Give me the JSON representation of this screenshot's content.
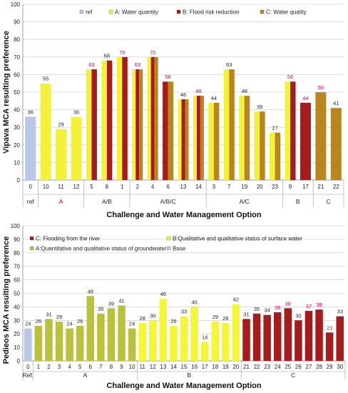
{
  "chart_data": [
    {
      "type": "bar",
      "ylabel": "Vipava MCA resulting preference",
      "xlabel": "Challenge and Water Management Option",
      "ylim": [
        0,
        100
      ],
      "yticks": [
        0,
        10,
        20,
        30,
        40,
        50,
        60,
        70,
        80,
        90,
        100
      ],
      "grid": true,
      "legend": "top",
      "series": [
        {
          "name": "ref",
          "color": "#b9c8e6"
        },
        {
          "name": "A: Water quantity",
          "color": "#f2f23a"
        },
        {
          "name": "B: Flood risk reduction",
          "color": "#a61c1c"
        },
        {
          "name": "C: Water quality",
          "color": "#b8861e"
        }
      ],
      "bars": [
        {
          "label": "0",
          "group": "ref",
          "series": [
            "ref"
          ],
          "value": 36,
          "label_color": "dark"
        },
        {
          "label": "10",
          "group": "A",
          "series": [
            "A: Water quantity"
          ],
          "value": 55,
          "label_color": "dark"
        },
        {
          "label": "11",
          "group": "A",
          "series": [
            "A: Water quantity"
          ],
          "value": 29,
          "label_color": "dark"
        },
        {
          "label": "12",
          "group": "A",
          "series": [
            "A: Water quantity"
          ],
          "value": 36,
          "label_color": "dark"
        },
        {
          "label": "5",
          "group": "A/B",
          "series": [
            "A: Water quantity",
            "B: Flood risk reduction"
          ],
          "value": 63,
          "label_color": "magenta"
        },
        {
          "label": "8",
          "group": "A/B",
          "series": [
            "A: Water quantity",
            "B: Flood risk reduction"
          ],
          "value": 68,
          "label_color": "dark"
        },
        {
          "label": "1",
          "group": "A/B",
          "series": [
            "A: Water quantity",
            "B: Flood risk reduction"
          ],
          "value": 70,
          "label_color": "magenta"
        },
        {
          "label": "2",
          "group": "A/B/C",
          "series": [
            "A: Water quantity",
            "B: Flood risk reduction",
            "C: Water quality"
          ],
          "value": 63,
          "label_color": "magenta"
        },
        {
          "label": "4",
          "group": "A/B/C",
          "series": [
            "A: Water quantity",
            "B: Flood risk reduction",
            "C: Water quality"
          ],
          "value": 70,
          "label_color": "magenta"
        },
        {
          "label": "6",
          "group": "A/B/C",
          "series": [
            "B: Flood risk reduction",
            "C: Water quality"
          ],
          "value": 56,
          "label_color": "magenta"
        },
        {
          "label": "13",
          "group": "A/B/C",
          "series": [
            "A: Water quantity",
            "B: Flood risk reduction",
            "C: Water quality"
          ],
          "value": 46,
          "label_color": "dark"
        },
        {
          "label": "14",
          "group": "A/B/C",
          "series": [
            "A: Water quantity",
            "B: Flood risk reduction",
            "C: Water quality"
          ],
          "value": 48,
          "label_color": "magenta"
        },
        {
          "label": "3",
          "group": "A/C",
          "series": [
            "A: Water quantity",
            "C: Water quality"
          ],
          "value": 44,
          "label_color": "dark"
        },
        {
          "label": "7",
          "group": "A/C",
          "series": [
            "A: Water quantity",
            "C: Water quality"
          ],
          "value": 63,
          "label_color": "dark"
        },
        {
          "label": "19",
          "group": "A/C",
          "series": [
            "A: Water quantity",
            "C: Water quality"
          ],
          "value": 48,
          "label_color": "dark"
        },
        {
          "label": "20",
          "group": "A/C",
          "series": [
            "A: Water quantity",
            "C: Water quality"
          ],
          "value": 39,
          "label_color": "dark"
        },
        {
          "label": "23",
          "group": "A/C",
          "series": [
            "A: Water quantity",
            "C: Water quality"
          ],
          "value": 27,
          "label_color": "dark"
        },
        {
          "label": "9",
          "group": "B",
          "series": [
            "A: Water quantity",
            "B: Flood risk reduction"
          ],
          "value": 56,
          "label_color": "magenta"
        },
        {
          "label": "17",
          "group": "B",
          "series": [
            "B: Flood risk reduction"
          ],
          "value": 44,
          "label_color": "magenta"
        },
        {
          "label": "21",
          "group": "C",
          "series": [
            "C: Water quality"
          ],
          "value": 50,
          "label_color": "magenta"
        },
        {
          "label": "22",
          "group": "C",
          "series": [
            "C: Water quality"
          ],
          "value": 41,
          "label_color": "dark"
        }
      ],
      "groups": [
        {
          "label": "ref",
          "color": "dark"
        },
        {
          "label": "A",
          "color": "red"
        },
        {
          "label": "A/B",
          "color": "dark"
        },
        {
          "label": "A/B/C",
          "color": "dark"
        },
        {
          "label": "A/C",
          "color": "dark"
        },
        {
          "label": "B",
          "color": "dark"
        },
        {
          "label": "C",
          "color": "dark"
        }
      ]
    },
    {
      "type": "bar",
      "ylabel": "Pedieos MCA resulting preference",
      "xlabel": "Challenge and Water Management Option",
      "ylim": [
        0,
        100
      ],
      "yticks": [
        0,
        10,
        20,
        30,
        40,
        50,
        60,
        70,
        80,
        90,
        100
      ],
      "grid": true,
      "legend": "top",
      "series": [
        {
          "name": "C: Flooding from the river",
          "color": "#a61c1c"
        },
        {
          "name": "B:Qualitative and qualitative status of surface water",
          "color": "#f5f53a"
        },
        {
          "name": "A:Quantitative and qualitative status of groundwater",
          "color": "#b9c23a"
        },
        {
          "name": "Base",
          "color": "#b9c8e6"
        }
      ],
      "bars": [
        {
          "label": "0",
          "group": "Ref.",
          "series": "Base",
          "value": 24,
          "label_color": "dark"
        },
        {
          "label": "1",
          "group": "A",
          "series": "A:Quantitative and qualitative status of groundwater",
          "value": 26,
          "label_color": "dark"
        },
        {
          "label": "2",
          "group": "A",
          "series": "A:Quantitative and qualitative status of groundwater",
          "value": 31,
          "label_color": "dark"
        },
        {
          "label": "3",
          "group": "A",
          "series": "A:Quantitative and qualitative status of groundwater",
          "value": 29,
          "label_color": "dark"
        },
        {
          "label": "4",
          "group": "A",
          "series": "A:Quantitative and qualitative status of groundwater",
          "value": 24,
          "label_color": "dark"
        },
        {
          "label": "5",
          "group": "A",
          "series": "A:Quantitative and qualitative status of groundwater",
          "value": 26,
          "label_color": "dark"
        },
        {
          "label": "6",
          "group": "A",
          "series": "A:Quantitative and qualitative status of groundwater",
          "value": 48,
          "label_color": "dark"
        },
        {
          "label": "7",
          "group": "A",
          "series": "A:Quantitative and qualitative status of groundwater",
          "value": 35,
          "label_color": "dark"
        },
        {
          "label": "8",
          "group": "A",
          "series": "A:Quantitative and qualitative status of groundwater",
          "value": 39,
          "label_color": "dark"
        },
        {
          "label": "9",
          "group": "A",
          "series": "A:Quantitative and qualitative status of groundwater",
          "value": 41,
          "label_color": "dark"
        },
        {
          "label": "10",
          "group": "A",
          "series": "A:Quantitative and qualitative status of groundwater",
          "value": 24,
          "label_color": "dark"
        },
        {
          "label": "11",
          "group": "B",
          "series": "B:Qualitative and qualitative status of surface water",
          "value": 28,
          "label_color": "dark"
        },
        {
          "label": "12",
          "group": "B",
          "series": "B:Qualitative and qualitative status of surface water",
          "value": 30,
          "label_color": "dark"
        },
        {
          "label": "13",
          "group": "B",
          "series": "B:Qualitative and qualitative status of surface water",
          "value": 46,
          "label_color": "dark"
        },
        {
          "label": "14",
          "group": "B",
          "series": "B:Qualitative and qualitative status of surface water",
          "value": 26,
          "label_color": "dark"
        },
        {
          "label": "15",
          "group": "B",
          "series": "B:Qualitative and qualitative status of surface water",
          "value": 33,
          "label_color": "dark"
        },
        {
          "label": "16",
          "group": "B",
          "series": "B:Qualitative and qualitative status of surface water",
          "value": 40,
          "label_color": "dark"
        },
        {
          "label": "17",
          "group": "B",
          "series": "B:Qualitative and qualitative status of surface water",
          "value": 14,
          "label_color": "dark"
        },
        {
          "label": "18",
          "group": "B",
          "series": "B:Qualitative and qualitative status of surface water",
          "value": 29,
          "label_color": "dark"
        },
        {
          "label": "19",
          "group": "B",
          "series": "B:Qualitative and qualitative status of surface water",
          "value": 28,
          "label_color": "dark"
        },
        {
          "label": "20",
          "group": "B",
          "series": "B:Qualitative and qualitative status of surface water",
          "value": 42,
          "label_color": "dark"
        },
        {
          "label": "21",
          "group": "C",
          "series": "C: Flooding from the river",
          "value": 31,
          "label_color": "dark"
        },
        {
          "label": "22",
          "group": "C",
          "series": "C: Flooding from the river",
          "value": 35,
          "label_color": "dark"
        },
        {
          "label": "23",
          "group": "C",
          "series": "C: Flooding from the river",
          "value": 34,
          "label_color": "dark"
        },
        {
          "label": "24",
          "group": "C",
          "series": "C: Flooding from the river",
          "value": 36,
          "label_color": "magenta"
        },
        {
          "label": "25",
          "group": "C",
          "series": "C: Flooding from the river",
          "value": 39,
          "label_color": "magenta"
        },
        {
          "label": "26",
          "group": "C",
          "series": "C: Flooding from the river",
          "value": 30,
          "label_color": "dark"
        },
        {
          "label": "27",
          "group": "C",
          "series": "C: Flooding from the river",
          "value": 37,
          "label_color": "magenta"
        },
        {
          "label": "28",
          "group": "C",
          "series": "C: Flooding from the river",
          "value": 38,
          "label_color": "magenta"
        },
        {
          "label": "29",
          "group": "C",
          "series": "C: Flooding from the river",
          "value": 21,
          "label_color": "magenta"
        },
        {
          "label": "30",
          "group": "C",
          "series": "C: Flooding from the river",
          "value": 33,
          "label_color": "dark"
        }
      ],
      "groups": [
        {
          "label": "Ref.",
          "color": "dark"
        },
        {
          "label": "A",
          "color": "dark"
        },
        {
          "label": "B",
          "color": "dark"
        },
        {
          "label": "C",
          "color": "dark"
        }
      ]
    }
  ]
}
